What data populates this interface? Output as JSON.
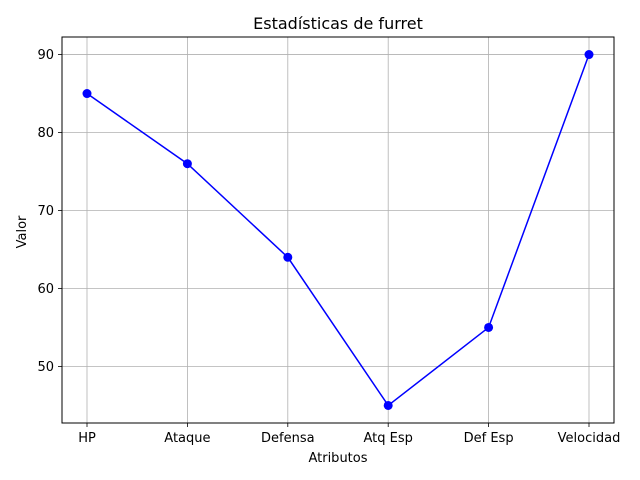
{
  "chart_data": {
    "type": "line",
    "title": "Estadísticas de furret",
    "xlabel": "Atributos",
    "ylabel": "Valor",
    "categories": [
      "HP",
      "Ataque",
      "Defensa",
      "Atq Esp",
      "Def Esp",
      "Velocidad"
    ],
    "series": [
      {
        "values": [
          85,
          76,
          64,
          45,
          55,
          90
        ],
        "color": "#0000ff",
        "marker": "circle"
      }
    ],
    "yticks": [
      50,
      60,
      70,
      80,
      90
    ],
    "ylim": [
      42.75,
      92.25
    ],
    "grid": true
  }
}
